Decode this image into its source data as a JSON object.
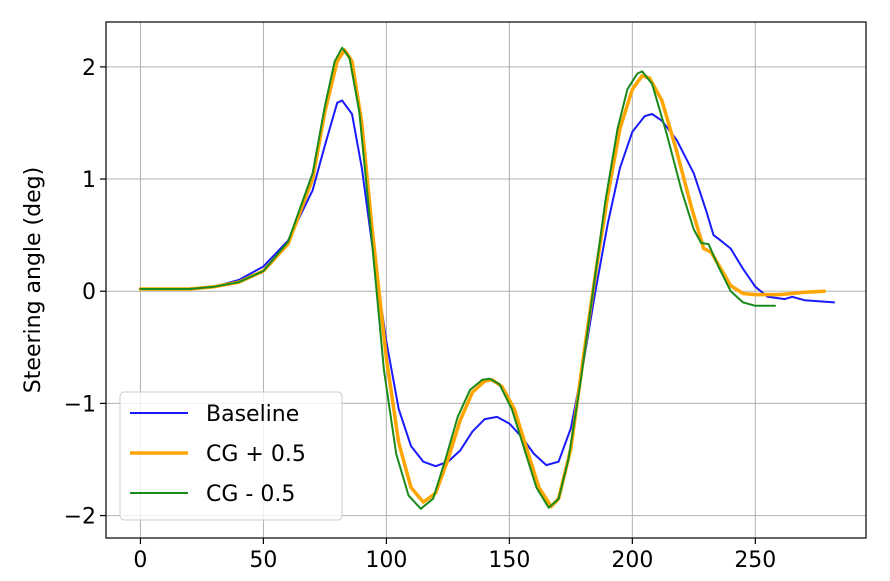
{
  "chart_data": {
    "type": "line",
    "title": "",
    "xlabel": "",
    "ylabel": "Steering angle (deg)",
    "xlim": [
      -14,
      295
    ],
    "ylim": [
      -2.2,
      2.4
    ],
    "xticks": [
      0,
      50,
      100,
      150,
      200,
      250
    ],
    "yticks": [
      -2,
      -1,
      0,
      1,
      2
    ],
    "xtick_labels": [
      "0",
      "50",
      "100",
      "150",
      "200",
      "250"
    ],
    "ytick_labels": [
      "−2",
      "−1",
      "0",
      "1",
      "2"
    ],
    "grid": true,
    "legend_position": "lower-left",
    "series": [
      {
        "name": "Baseline",
        "color": "#1a1aff",
        "linewidth": 2,
        "points": [
          [
            0,
            0.02
          ],
          [
            20,
            0.02
          ],
          [
            30,
            0.04
          ],
          [
            40,
            0.1
          ],
          [
            50,
            0.22
          ],
          [
            60,
            0.45
          ],
          [
            70,
            0.9
          ],
          [
            75,
            1.3
          ],
          [
            80,
            1.68
          ],
          [
            82,
            1.7
          ],
          [
            86,
            1.58
          ],
          [
            90,
            1.1
          ],
          [
            94,
            0.45
          ],
          [
            97,
            0.0
          ],
          [
            100,
            -0.45
          ],
          [
            105,
            -1.05
          ],
          [
            110,
            -1.38
          ],
          [
            115,
            -1.52
          ],
          [
            120,
            -1.56
          ],
          [
            125,
            -1.52
          ],
          [
            130,
            -1.42
          ],
          [
            135,
            -1.25
          ],
          [
            140,
            -1.14
          ],
          [
            145,
            -1.12
          ],
          [
            150,
            -1.18
          ],
          [
            155,
            -1.3
          ],
          [
            160,
            -1.45
          ],
          [
            165,
            -1.55
          ],
          [
            170,
            -1.52
          ],
          [
            175,
            -1.22
          ],
          [
            180,
            -0.65
          ],
          [
            185,
            0.0
          ],
          [
            190,
            0.6
          ],
          [
            195,
            1.1
          ],
          [
            200,
            1.42
          ],
          [
            205,
            1.56
          ],
          [
            208,
            1.58
          ],
          [
            212,
            1.52
          ],
          [
            218,
            1.35
          ],
          [
            225,
            1.05
          ],
          [
            230,
            0.72
          ],
          [
            233,
            0.5
          ],
          [
            236,
            0.45
          ],
          [
            240,
            0.38
          ],
          [
            245,
            0.2
          ],
          [
            250,
            0.04
          ],
          [
            255,
            -0.05
          ],
          [
            262,
            -0.07
          ],
          [
            265,
            -0.05
          ],
          [
            270,
            -0.08
          ],
          [
            282,
            -0.1
          ]
        ]
      },
      {
        "name": "CG + 0.5",
        "color": "#ffa500",
        "linewidth": 3.5,
        "points": [
          [
            0,
            0.02
          ],
          [
            20,
            0.02
          ],
          [
            30,
            0.04
          ],
          [
            40,
            0.08
          ],
          [
            50,
            0.18
          ],
          [
            60,
            0.42
          ],
          [
            70,
            1.0
          ],
          [
            75,
            1.6
          ],
          [
            80,
            2.05
          ],
          [
            83,
            2.15
          ],
          [
            86,
            2.05
          ],
          [
            90,
            1.5
          ],
          [
            94,
            0.6
          ],
          [
            97,
            0.0
          ],
          [
            100,
            -0.6
          ],
          [
            105,
            -1.35
          ],
          [
            110,
            -1.75
          ],
          [
            115,
            -1.88
          ],
          [
            120,
            -1.8
          ],
          [
            125,
            -1.5
          ],
          [
            130,
            -1.15
          ],
          [
            135,
            -0.9
          ],
          [
            140,
            -0.8
          ],
          [
            143,
            -0.79
          ],
          [
            147,
            -0.85
          ],
          [
            152,
            -1.05
          ],
          [
            157,
            -1.4
          ],
          [
            162,
            -1.75
          ],
          [
            167,
            -1.92
          ],
          [
            170,
            -1.85
          ],
          [
            175,
            -1.4
          ],
          [
            180,
            -0.6
          ],
          [
            185,
            0.15
          ],
          [
            190,
            0.85
          ],
          [
            195,
            1.45
          ],
          [
            200,
            1.8
          ],
          [
            204,
            1.92
          ],
          [
            207,
            1.9
          ],
          [
            212,
            1.7
          ],
          [
            218,
            1.25
          ],
          [
            224,
            0.75
          ],
          [
            229,
            0.38
          ],
          [
            232,
            0.35
          ],
          [
            236,
            0.2
          ],
          [
            240,
            0.05
          ],
          [
            245,
            -0.02
          ],
          [
            250,
            -0.03
          ],
          [
            260,
            -0.03
          ],
          [
            270,
            -0.01
          ],
          [
            278,
            0.0
          ]
        ]
      },
      {
        "name": "CG - 0.5",
        "color": "#1a8a1a",
        "linewidth": 2,
        "points": [
          [
            0,
            0.02
          ],
          [
            20,
            0.02
          ],
          [
            30,
            0.04
          ],
          [
            40,
            0.08
          ],
          [
            50,
            0.18
          ],
          [
            60,
            0.44
          ],
          [
            70,
            1.05
          ],
          [
            75,
            1.65
          ],
          [
            79,
            2.05
          ],
          [
            82,
            2.17
          ],
          [
            85,
            2.08
          ],
          [
            89,
            1.6
          ],
          [
            93,
            0.7
          ],
          [
            96,
            0.0
          ],
          [
            99,
            -0.7
          ],
          [
            104,
            -1.45
          ],
          [
            109,
            -1.82
          ],
          [
            114,
            -1.94
          ],
          [
            119,
            -1.85
          ],
          [
            124,
            -1.5
          ],
          [
            129,
            -1.12
          ],
          [
            134,
            -0.88
          ],
          [
            139,
            -0.79
          ],
          [
            142,
            -0.78
          ],
          [
            146,
            -0.83
          ],
          [
            151,
            -1.05
          ],
          [
            156,
            -1.4
          ],
          [
            161,
            -1.75
          ],
          [
            166,
            -1.93
          ],
          [
            170,
            -1.85
          ],
          [
            174,
            -1.5
          ],
          [
            179,
            -0.8
          ],
          [
            184,
            0.0
          ],
          [
            189,
            0.8
          ],
          [
            194,
            1.45
          ],
          [
            198,
            1.8
          ],
          [
            202,
            1.94
          ],
          [
            204,
            1.96
          ],
          [
            208,
            1.85
          ],
          [
            214,
            1.4
          ],
          [
            220,
            0.9
          ],
          [
            225,
            0.55
          ],
          [
            228,
            0.43
          ],
          [
            231,
            0.42
          ],
          [
            235,
            0.22
          ],
          [
            240,
            0.0
          ],
          [
            245,
            -0.1
          ],
          [
            250,
            -0.13
          ],
          [
            258,
            -0.13
          ]
        ]
      }
    ]
  }
}
